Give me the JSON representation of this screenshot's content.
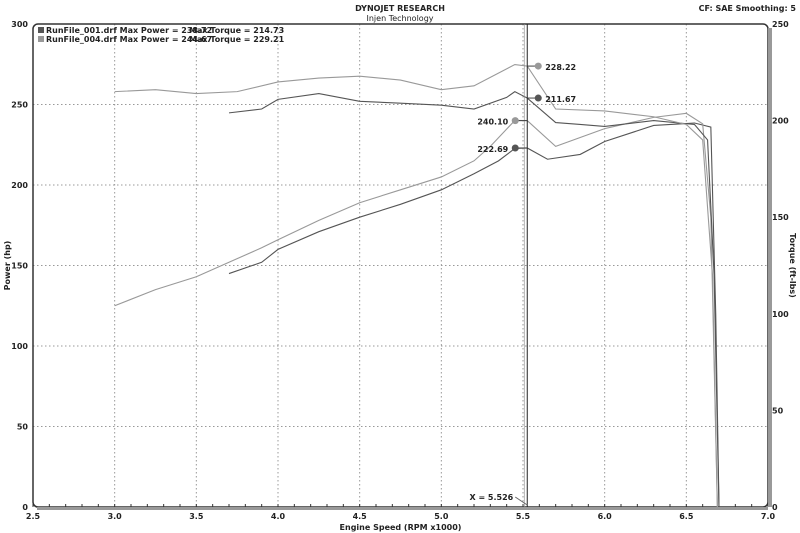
{
  "header": {
    "title": "DYNOJET RESEARCH",
    "subtitle": "Injen Technology",
    "settings": "CF: SAE  Smoothing: 5"
  },
  "chart_data": {
    "type": "line",
    "xlabel": "Engine Speed (RPM x1000)",
    "ylabel": "Power (hp)",
    "y2label": "Torque (ft-lbs)",
    "xlim": [
      2.5,
      7.0
    ],
    "ylim": [
      0,
      300
    ],
    "y2lim": [
      0,
      250
    ],
    "xticks": [
      "2.5",
      "3.0",
      "3.5",
      "4.0",
      "4.5",
      "5.0",
      "5.5",
      "6.0",
      "6.5",
      "7.0"
    ],
    "yticks": [
      "0",
      "50",
      "100",
      "150",
      "200",
      "250",
      "300"
    ],
    "y2ticks": [
      "0",
      "50",
      "100",
      "150",
      "200",
      "250"
    ],
    "grid": true,
    "legend_position": "top-left",
    "legend": [
      {
        "label": "RunFile_001.drf Max Power = 238.72",
        "torque_label": "Max Torque = 214.73",
        "color": "#555555"
      },
      {
        "label": "RunFile_004.drf Max Power = 244.67",
        "torque_label": "Max Torque = 229.21",
        "color": "#999999"
      }
    ],
    "cursor": {
      "x": 5.526,
      "label": "X = 5.526"
    },
    "series": [
      {
        "run": "RunFile_001.drf",
        "quantity": "power",
        "axis": "left",
        "color": "#555555",
        "x": [
          3.7,
          3.9,
          4.0,
          4.25,
          4.5,
          4.75,
          5.0,
          5.2,
          5.35,
          5.45,
          5.526,
          5.65,
          5.85,
          6.0,
          6.3,
          6.55,
          6.65,
          6.68,
          6.7
        ],
        "y": [
          145,
          152,
          160,
          171,
          180,
          188,
          197,
          207,
          215,
          222.69,
          223,
          216,
          219,
          227,
          237,
          238.5,
          236,
          120,
          0
        ]
      },
      {
        "run": "RunFile_004.drf",
        "quantity": "power",
        "axis": "left",
        "color": "#999999",
        "x": [
          3.0,
          3.25,
          3.5,
          3.7,
          3.9,
          4.0,
          4.25,
          4.5,
          4.75,
          5.0,
          5.2,
          5.3,
          5.45,
          5.526,
          5.7,
          6.0,
          6.3,
          6.5,
          6.6,
          6.65,
          6.69
        ],
        "y": [
          125,
          135,
          143,
          152,
          161,
          166,
          178,
          189,
          197,
          205,
          215,
          224,
          240.1,
          240,
          224,
          235,
          242,
          244.5,
          238,
          180,
          0
        ]
      },
      {
        "run": "RunFile_001.drf",
        "quantity": "torque",
        "axis": "right",
        "color": "#555555",
        "x": [
          3.7,
          3.9,
          4.0,
          4.25,
          4.5,
          4.75,
          5.0,
          5.2,
          5.4,
          5.45,
          5.526,
          5.7,
          5.85,
          6.0,
          6.3,
          6.55,
          6.63,
          6.67,
          6.7
        ],
        "y": [
          204,
          206,
          211,
          214,
          210,
          209,
          208,
          206,
          212,
          215,
          211.67,
          199,
          198,
          197,
          200,
          198,
          190,
          120,
          0
        ]
      },
      {
        "run": "RunFile_004.drf",
        "quantity": "torque",
        "axis": "right",
        "color": "#999999",
        "x": [
          3.0,
          3.25,
          3.5,
          3.75,
          4.0,
          4.25,
          4.5,
          4.75,
          5.0,
          5.2,
          5.45,
          5.526,
          5.7,
          6.0,
          6.3,
          6.5,
          6.6,
          6.66,
          6.69
        ],
        "y": [
          215,
          216,
          214,
          215,
          220,
          222,
          223,
          221,
          216,
          218,
          229,
          228.22,
          206,
          205,
          202,
          198,
          190,
          120,
          0
        ]
      }
    ],
    "markers": [
      {
        "label": "228.22",
        "series": 3,
        "side": "right"
      },
      {
        "label": "211.67",
        "series": 2,
        "side": "right"
      },
      {
        "label": "240.10",
        "series": 1,
        "side": "left"
      },
      {
        "label": "222.69",
        "series": 0,
        "side": "left"
      }
    ]
  }
}
